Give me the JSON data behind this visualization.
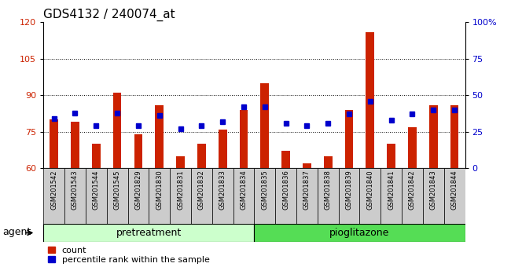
{
  "title": "GDS4132 / 240074_at",
  "categories": [
    "GSM201542",
    "GSM201543",
    "GSM201544",
    "GSM201545",
    "GSM201829",
    "GSM201830",
    "GSM201831",
    "GSM201832",
    "GSM201833",
    "GSM201834",
    "GSM201835",
    "GSM201836",
    "GSM201837",
    "GSM201838",
    "GSM201839",
    "GSM201840",
    "GSM201841",
    "GSM201842",
    "GSM201843",
    "GSM201844"
  ],
  "count_values": [
    80,
    79,
    70,
    91,
    74,
    86,
    65,
    70,
    76,
    84,
    95,
    67,
    62,
    65,
    84,
    116,
    70,
    77,
    86,
    86
  ],
  "percentile_values": [
    34,
    38,
    29,
    38,
    29,
    36,
    27,
    29,
    32,
    42,
    42,
    31,
    29,
    31,
    37,
    46,
    33,
    37,
    40,
    40
  ],
  "group1_label": "pretreatment",
  "group2_label": "pioglitazone",
  "group1_count": 10,
  "group2_count": 10,
  "ylim_left": [
    60,
    120
  ],
  "yticks_left": [
    60,
    75,
    90,
    105,
    120
  ],
  "ylim_right": [
    0,
    100
  ],
  "yticks_right": [
    0,
    25,
    50,
    75,
    100
  ],
  "ytick_right_labels": [
    "0",
    "25",
    "50",
    "75",
    "100%"
  ],
  "bar_color": "#cc2200",
  "dot_color": "#0000cc",
  "bar_width": 0.4,
  "group1_bg": "#ccffcc",
  "group2_bg": "#55dd55",
  "xticklabel_bg": "#cccccc",
  "legend_count_label": "count",
  "legend_percentile_label": "percentile rank within the sample",
  "agent_label": "agent",
  "grid_yticks": [
    75,
    90,
    105
  ],
  "title_fontsize": 11,
  "tick_fontsize": 8,
  "label_fontsize": 9
}
